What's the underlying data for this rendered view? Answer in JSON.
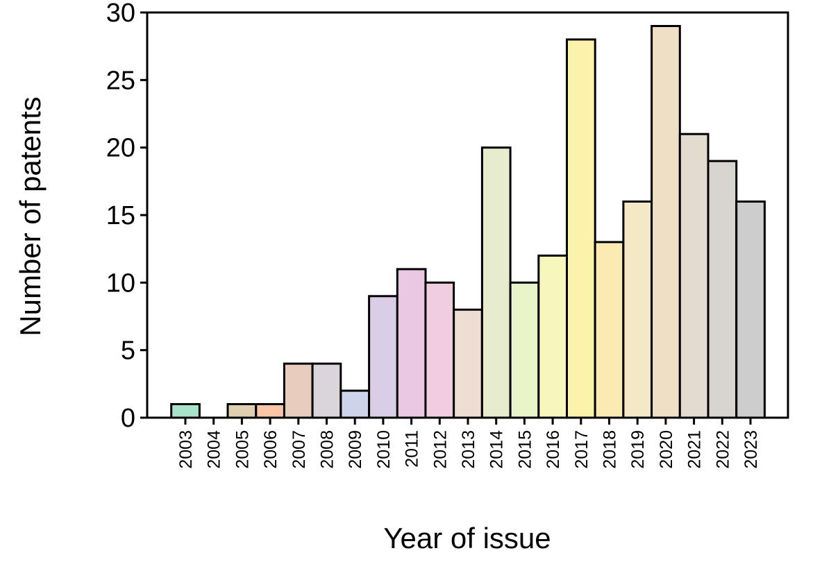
{
  "chart_data": {
    "type": "bar",
    "title": "",
    "xlabel": "Year of issue",
    "ylabel": "Number of patents",
    "ylim": [
      0,
      30
    ],
    "yticks": [
      0,
      5,
      10,
      15,
      20,
      25,
      30
    ],
    "grid": false,
    "legend": "none",
    "categories": [
      "2003",
      "2004",
      "2005",
      "2006",
      "2007",
      "2008",
      "2009",
      "2010",
      "2011",
      "2012",
      "2013",
      "2014",
      "2015",
      "2016",
      "2017",
      "2018",
      "2019",
      "2020",
      "2021",
      "2022",
      "2023"
    ],
    "values": [
      1,
      0,
      1,
      1,
      4,
      4,
      2,
      9,
      11,
      10,
      8,
      20,
      10,
      12,
      28,
      13,
      16,
      29,
      21,
      19,
      16
    ],
    "colors": [
      "#a9e2cb",
      "#ffffff",
      "#e0cfb0",
      "#fac6a6",
      "#e8cdbf",
      "#d9d5da",
      "#cdd3ea",
      "#dbcde6",
      "#eac8e4",
      "#f1cde0",
      "#eeddd3",
      "#e7ecce",
      "#eaf4c9",
      "#f6f6bd",
      "#fbf3ab",
      "#fbebb3",
      "#f5e8c5",
      "#efe0c5",
      "#e3dad0",
      "#d8d5d0",
      "#cdcdcd"
    ]
  }
}
